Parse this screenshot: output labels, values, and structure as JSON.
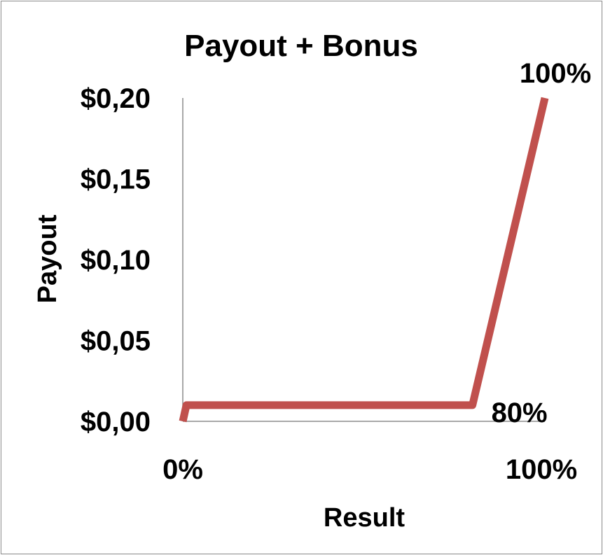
{
  "chart_data": {
    "type": "line",
    "title": "Payout + Bonus",
    "xlabel": "Result",
    "ylabel": "Payout",
    "x_tick_labels": [
      "0%",
      "100%"
    ],
    "y_tick_labels": [
      "$0,00",
      "$0,05",
      "$0,10",
      "$0,15",
      "$0,20"
    ],
    "y_ticks": [
      0,
      0.05,
      0.1,
      0.15,
      0.2
    ],
    "xlim": [
      0,
      100
    ],
    "ylim": [
      0,
      0.2
    ],
    "grid": false,
    "legend": "none",
    "series": [
      {
        "color": "#c0504d",
        "points": [
          {
            "x": 0,
            "y": 0.0
          },
          {
            "x": 1,
            "y": 0.01
          },
          {
            "x": 80,
            "y": 0.01
          },
          {
            "x": 100,
            "y": 0.2
          }
        ]
      }
    ],
    "annotations": [
      {
        "text": "80%",
        "x": 80,
        "y": 0.01
      },
      {
        "text": "100%",
        "x": 100,
        "y": 0.2
      }
    ]
  }
}
